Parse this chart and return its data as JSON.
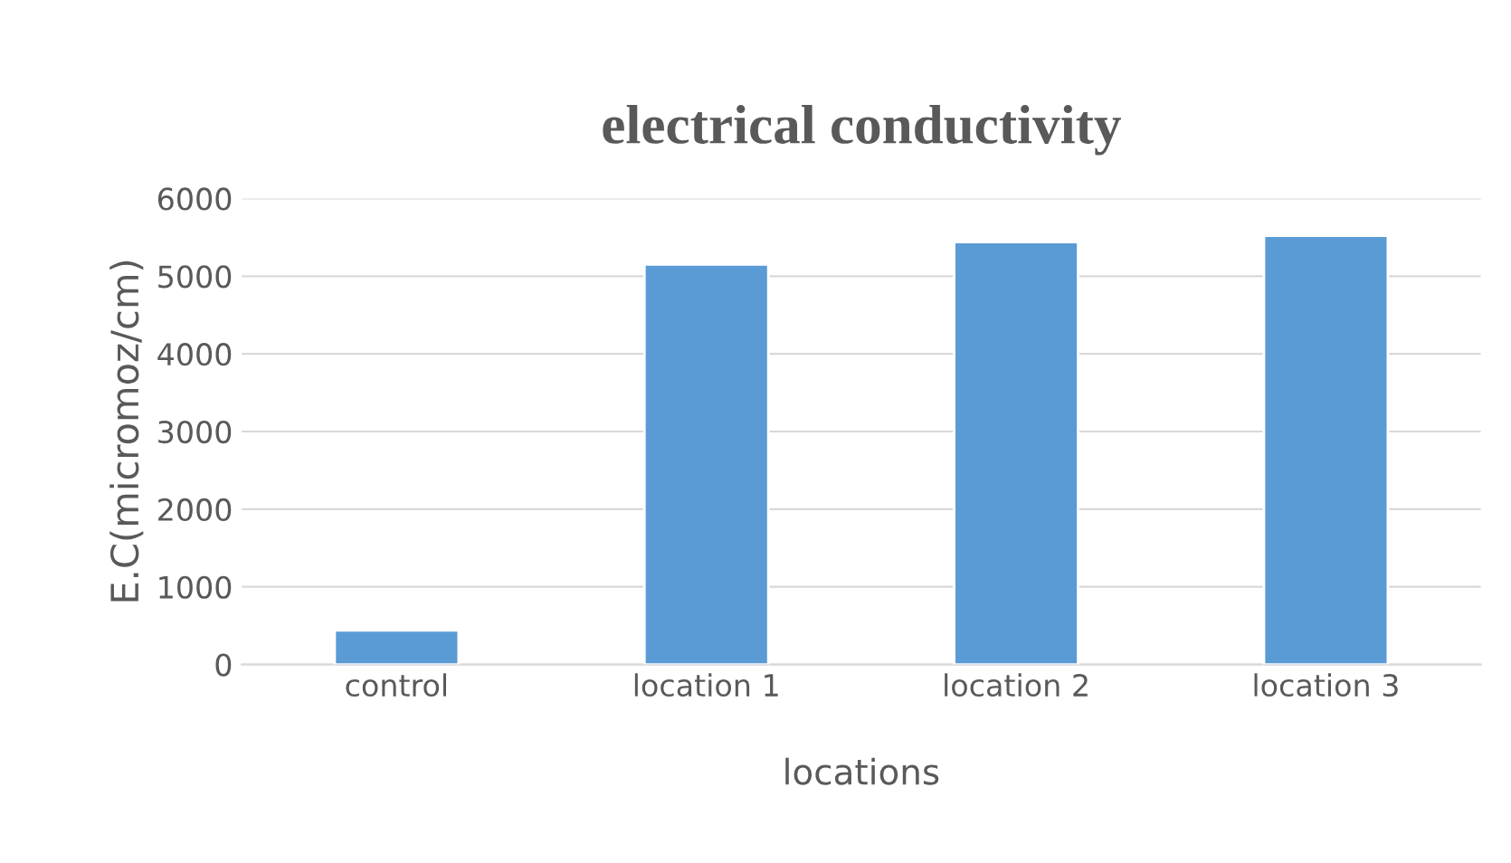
{
  "chart_data": {
    "type": "bar",
    "title": "electrical conductivity",
    "xlabel": "locations",
    "ylabel": "E.C(micromoz/cm)",
    "categories": [
      "control",
      "location 1",
      "location 2",
      "location 3"
    ],
    "values": [
      440,
      5150,
      5440,
      5520
    ],
    "color": "#5b9bd5",
    "ylim": [
      0,
      6000
    ],
    "yticks": [
      0,
      1000,
      2000,
      3000,
      4000,
      5000,
      6000
    ],
    "grid": "y"
  }
}
